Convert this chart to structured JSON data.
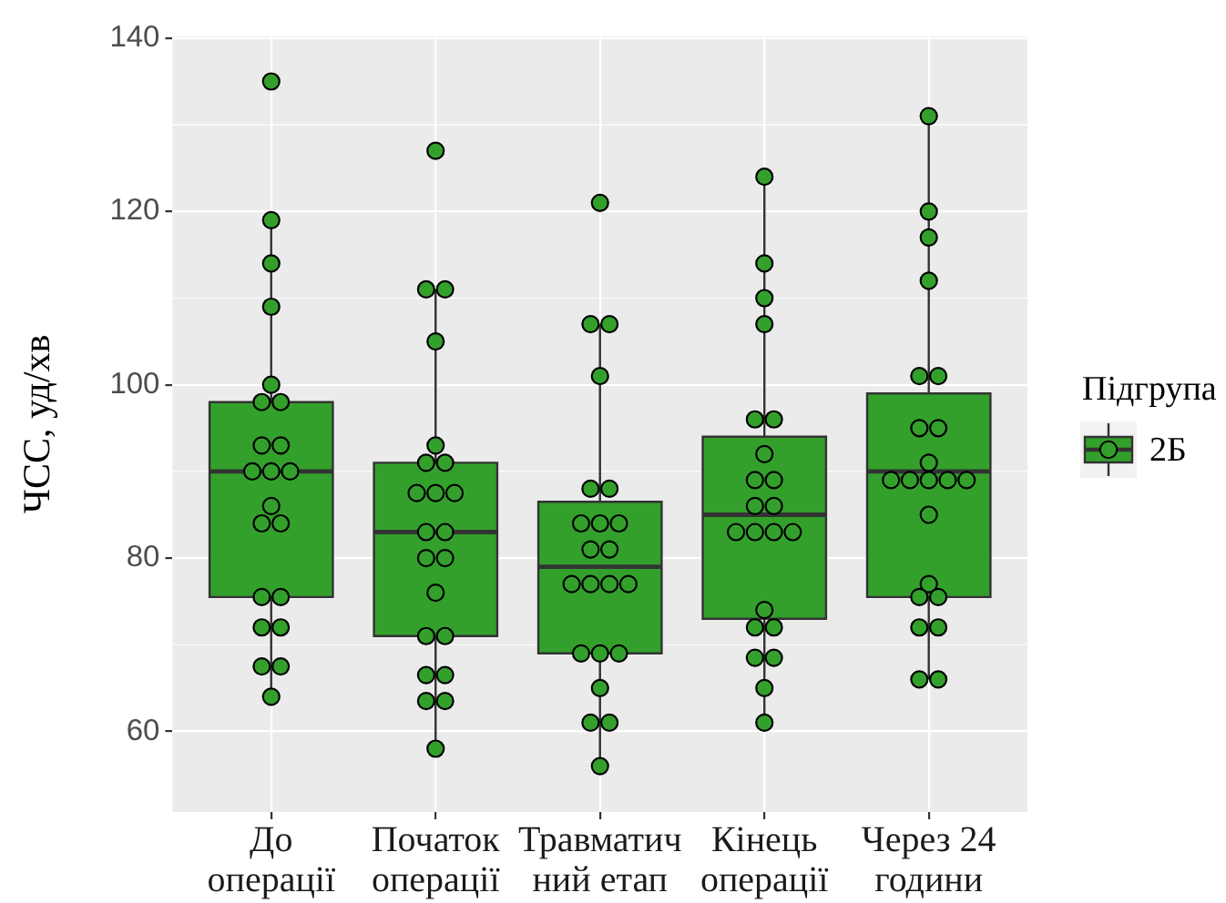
{
  "chart_data": {
    "type": "box",
    "categories": [
      "До\nоперації",
      "Початок\nоперації",
      "Травматич\nний етап",
      "Кінець\nоперації",
      "Через 24\nгодини"
    ],
    "ylabel": "ЧСС, уд/хв",
    "legend_title": "Підгрупа",
    "legend": "right",
    "grid": true,
    "marker": "circle",
    "ylim": [
      50.7,
      140.2
    ],
    "yticks": [
      60,
      80,
      100,
      120,
      140
    ],
    "series": [
      {
        "name": "2Б",
        "color": "#33a02c",
        "boxes": [
          {
            "low": 64,
            "q1": 75.5,
            "median": 90,
            "q3": 98,
            "high": 119
          },
          {
            "low": 58,
            "q1": 71,
            "median": 83,
            "q3": 91,
            "high": 111
          },
          {
            "low": 56,
            "q1": 69,
            "median": 79,
            "q3": 86.5,
            "high": 107
          },
          {
            "low": 61,
            "q1": 73,
            "median": 85,
            "q3": 94,
            "high": 124
          },
          {
            "low": 66,
            "q1": 75.5,
            "median": 90,
            "q3": 99,
            "high": 131
          }
        ]
      },
      {
        "type": "scatter",
        "color": "#33a02c",
        "x": [
          "До\nоперації",
          "До\nоперації",
          "До\nоперації",
          "До\nоперації",
          "До\nоперації",
          "До\nоперації",
          "До\nоперації",
          "До\nоперації",
          "До\nоперації",
          "До\nоперації",
          "До\nоперації",
          "До\nоперації",
          "До\nоперації",
          "До\nоперації",
          "До\nоперації",
          "До\nоперації",
          "До\nоперації",
          "До\nоперації",
          "До\nоперації",
          "До\nоперації",
          "До\nоперації",
          "До\nоперації",
          "Початок\nоперації",
          "Початок\nоперації",
          "Початок\nоперації",
          "Початок\nоперації",
          "Початок\nоперації",
          "Початок\nоперації",
          "Початок\nоперації",
          "Початок\nоперації",
          "Початок\nоперації",
          "Початок\nоперації",
          "Початок\nоперації",
          "Початок\nоперації",
          "Початок\nоперації",
          "Початок\nоперації",
          "Початок\nоперації",
          "Початок\nоперації",
          "Початок\nоперації",
          "Початок\nоперації",
          "Початок\nоперації",
          "Початок\nоперації",
          "Початок\nоперації",
          "Початок\nоперації",
          "Травматич\nний етап",
          "Травматич\nний етап",
          "Травматич\nний етап",
          "Травматич\nний етап",
          "Травматич\nний етап",
          "Травматич\nний етап",
          "Травматич\nний етап",
          "Травматич\nний етап",
          "Травматич\nний етап",
          "Травматич\nний етап",
          "Травматич\nний етап",
          "Травматич\nний етап",
          "Травматич\nний етап",
          "Травматич\nний етап",
          "Травматич\nний етап",
          "Травматич\nний етап",
          "Травматич\nний етап",
          "Травматич\nний етап",
          "Травматич\nний етап",
          "Травматич\nний етап",
          "Травматич\nний етап",
          "Травматич\nний етап",
          "Кінець\nоперації",
          "Кінець\nоперації",
          "Кінець\nоперації",
          "Кінець\nоперації",
          "Кінець\nоперації",
          "Кінець\nоперації",
          "Кінець\nоперації",
          "Кінець\nоперації",
          "Кінець\nоперації",
          "Кінець\nоперації",
          "Кінець\nоперації",
          "Кінець\nоперації",
          "Кінець\nоперації",
          "Кінець\nоперації",
          "Кінець\nоперації",
          "Кінець\nоперації",
          "Кінець\nоперації",
          "Кінець\nоперації",
          "Кінець\nоперації",
          "Кінець\nоперації",
          "Кінець\nоперації",
          "Кінець\nоперації",
          "Через 24\nгодини",
          "Через 24\nгодини",
          "Через 24\nгодини",
          "Через 24\nгодини",
          "Через 24\nгодини",
          "Через 24\nгодини",
          "Через 24\nгодини",
          "Через 24\nгодини",
          "Через 24\nгодини",
          "Через 24\nгодини",
          "Через 24\nгодини",
          "Через 24\nгодини",
          "Через 24\nгодини",
          "Через 24\nгодини",
          "Через 24\nгодини",
          "Через 24\nгодини",
          "Через 24\nгодини",
          "Через 24\nгодини",
          "Через 24\nгодини",
          "Через 24\nгодини",
          "Через 24\nгодини",
          "Через 24\nгодини"
        ],
        "values": [
          135,
          119,
          114,
          109,
          100,
          98,
          98,
          93,
          93,
          90,
          90,
          90,
          86,
          84,
          84,
          75.5,
          75.5,
          72,
          72,
          67.5,
          67.5,
          64,
          127,
          111,
          111,
          105,
          93,
          91,
          91,
          87.5,
          87.5,
          87.5,
          83,
          83,
          80,
          80,
          76,
          71,
          71,
          66.5,
          66.5,
          63.5,
          63.5,
          58,
          121,
          107,
          107,
          101,
          88,
          88,
          84,
          84,
          84,
          81,
          81,
          77,
          77,
          77,
          77,
          69,
          69,
          69,
          65,
          61,
          61,
          56,
          124,
          114,
          110,
          107,
          96,
          96,
          92,
          89,
          89,
          86,
          86,
          83,
          83,
          83,
          83,
          74,
          72,
          72,
          68.5,
          68.5,
          65,
          61,
          131,
          120,
          117,
          112,
          101,
          101,
          95,
          95,
          91,
          89,
          89,
          89,
          89,
          89,
          85,
          77,
          75.5,
          75.5,
          72,
          72,
          66,
          66
        ]
      }
    ]
  }
}
